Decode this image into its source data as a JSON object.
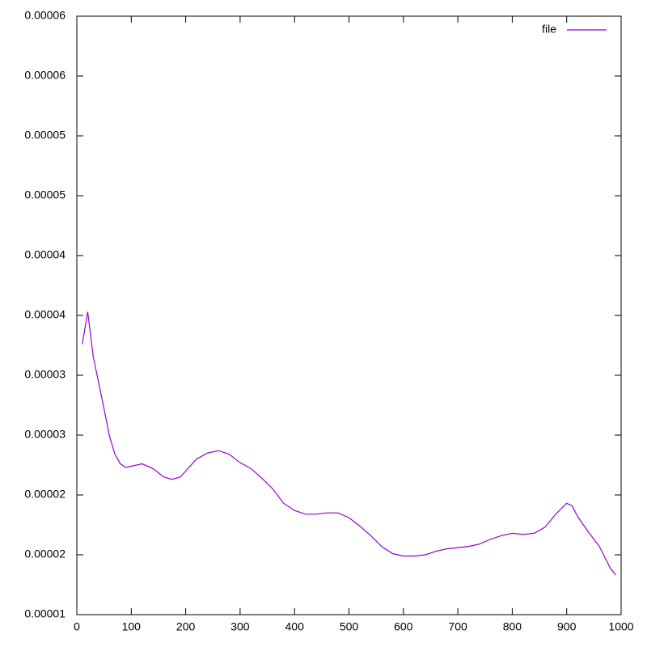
{
  "chart_data": {
    "type": "line",
    "x": [
      10,
      20,
      30,
      50,
      60,
      70,
      80,
      90,
      100,
      120,
      140,
      160,
      175,
      190,
      200,
      220,
      240,
      260,
      280,
      300,
      320,
      340,
      360,
      380,
      400,
      420,
      440,
      460,
      480,
      500,
      520,
      540,
      560,
      580,
      600,
      620,
      640,
      660,
      680,
      700,
      720,
      740,
      760,
      780,
      800,
      820,
      840,
      860,
      880,
      900,
      910,
      920,
      940,
      960,
      980,
      990
    ],
    "series": [
      {
        "name": "file",
        "color": "#9400d3",
        "values": [
          3.26e-05,
          3.53e-05,
          3.16e-05,
          2.72e-05,
          2.49e-05,
          2.34e-05,
          2.26e-05,
          2.23e-05,
          2.24e-05,
          2.26e-05,
          2.22e-05,
          2.15e-05,
          2.13e-05,
          2.15e-05,
          2.2e-05,
          2.3e-05,
          2.35e-05,
          2.37e-05,
          2.34e-05,
          2.27e-05,
          2.22e-05,
          2.14e-05,
          2.05e-05,
          1.93e-05,
          1.87e-05,
          1.84e-05,
          1.84e-05,
          1.85e-05,
          1.85e-05,
          1.81e-05,
          1.74e-05,
          1.66e-05,
          1.57e-05,
          1.51e-05,
          1.49e-05,
          1.49e-05,
          1.5e-05,
          1.53e-05,
          1.55e-05,
          1.56e-05,
          1.57e-05,
          1.59e-05,
          1.63e-05,
          1.66e-05,
          1.68e-05,
          1.67e-05,
          1.68e-05,
          1.73e-05,
          1.84e-05,
          1.93e-05,
          1.91e-05,
          1.82e-05,
          1.69e-05,
          1.57e-05,
          1.39e-05,
          1.33e-05
        ]
      }
    ],
    "xlim": [
      0,
      1000
    ],
    "xticks": [
      0,
      100,
      200,
      300,
      400,
      500,
      600,
      700,
      800,
      900,
      1000
    ],
    "ylim": [
      1e-05,
      6e-05
    ],
    "yticks": [
      {
        "value": 1e-05,
        "label": "0.00001"
      },
      {
        "value": 1.5e-05,
        "label": "0.00002"
      },
      {
        "value": 2e-05,
        "label": "0.00002"
      },
      {
        "value": 2.5e-05,
        "label": "0.00003"
      },
      {
        "value": 3e-05,
        "label": "0.00003"
      },
      {
        "value": 3.5e-05,
        "label": "0.00004"
      },
      {
        "value": 4e-05,
        "label": "0.00004"
      },
      {
        "value": 4.5e-05,
        "label": "0.00005"
      },
      {
        "value": 5e-05,
        "label": "0.00005"
      },
      {
        "value": 5.5e-05,
        "label": "0.00006"
      },
      {
        "value": 6e-05,
        "label": "0.00006"
      }
    ],
    "legend": "top-right"
  }
}
